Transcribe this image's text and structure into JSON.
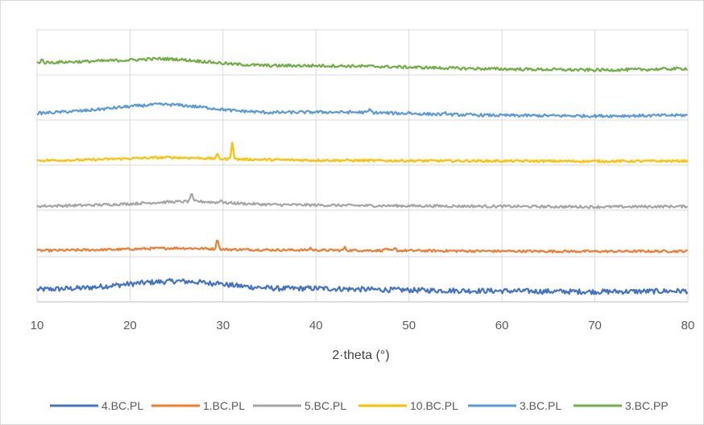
{
  "chart_data": {
    "type": "line",
    "title": "",
    "xlabel": "2·theta (°)",
    "ylabel": "",
    "xlim": [
      10,
      80
    ],
    "x_ticks": [
      "10",
      "20",
      "30",
      "40",
      "50",
      "60",
      "70",
      "80"
    ],
    "y_ticks_labeled": false,
    "grid": true,
    "legend_position": "bottom",
    "offset_stacked": true,
    "series": [
      {
        "name": "4.BC.PL",
        "color": "#4472C4",
        "noise": 1.0,
        "points": [
          [
            10,
            1.0
          ],
          [
            15,
            1.6
          ],
          [
            20,
            3.2
          ],
          [
            22,
            3.8
          ],
          [
            25,
            4.3
          ],
          [
            27,
            4.0
          ],
          [
            30,
            3.0
          ],
          [
            33,
            2.0
          ],
          [
            36,
            1.4
          ],
          [
            40,
            1.5
          ],
          [
            45,
            1.1
          ],
          [
            50,
            0.8
          ],
          [
            55,
            0.6
          ],
          [
            60,
            0.5
          ],
          [
            65,
            0.3
          ],
          [
            70,
            0.2
          ],
          [
            75,
            0.3
          ],
          [
            80,
            0.5
          ]
        ],
        "spikes": [
          [
            29.4,
            2.0
          ]
        ]
      },
      {
        "name": "1.BC.PL",
        "color": "#ED7D31",
        "noise": 0.45,
        "points": [
          [
            10,
            0.5
          ],
          [
            18,
            0.9
          ],
          [
            22,
            1.3
          ],
          [
            25,
            1.5
          ],
          [
            28,
            1.3
          ],
          [
            30,
            1.0
          ],
          [
            35,
            0.8
          ],
          [
            40,
            0.7
          ],
          [
            45,
            0.6
          ],
          [
            50,
            0.5
          ],
          [
            60,
            0.3
          ],
          [
            70,
            0.2
          ],
          [
            80,
            0.3
          ]
        ],
        "spikes": [
          [
            29.4,
            4.4
          ],
          [
            39.4,
            0.9
          ],
          [
            43.1,
            1.1
          ],
          [
            47.5,
            1.0
          ],
          [
            48.5,
            0.8
          ]
        ]
      },
      {
        "name": "5.BC.PL",
        "color": "#A5A5A5",
        "noise": 0.5,
        "points": [
          [
            10,
            0.6
          ],
          [
            15,
            0.9
          ],
          [
            20,
            1.5
          ],
          [
            24,
            2.2
          ],
          [
            27,
            2.5
          ],
          [
            30,
            1.9
          ],
          [
            35,
            1.2
          ],
          [
            40,
            1.0
          ],
          [
            45,
            0.8
          ],
          [
            50,
            0.7
          ],
          [
            60,
            0.5
          ],
          [
            70,
            0.3
          ],
          [
            80,
            0.5
          ]
        ],
        "spikes": [
          [
            26.6,
            3.5
          ],
          [
            29.8,
            1.4
          ]
        ]
      },
      {
        "name": "10.BC.PL",
        "color": "#FFC000",
        "noise": 0.45,
        "points": [
          [
            10,
            0.5
          ],
          [
            15,
            0.7
          ],
          [
            20,
            1.3
          ],
          [
            24,
            1.7
          ],
          [
            27,
            1.5
          ],
          [
            30,
            1.1
          ],
          [
            35,
            0.8
          ],
          [
            40,
            0.6
          ],
          [
            50,
            0.4
          ],
          [
            60,
            0.3
          ],
          [
            70,
            0.2
          ],
          [
            80,
            0.3
          ]
        ],
        "spikes": [
          [
            29.4,
            1.8
          ],
          [
            31.0,
            6.8
          ]
        ]
      },
      {
        "name": "3.BC.PL",
        "color": "#5B9BD5",
        "noise": 0.55,
        "points": [
          [
            10,
            1.3
          ],
          [
            15,
            2.3
          ],
          [
            20,
            4.0
          ],
          [
            23,
            4.8
          ],
          [
            25,
            4.6
          ],
          [
            28,
            3.6
          ],
          [
            31,
            2.4
          ],
          [
            35,
            1.6
          ],
          [
            40,
            1.8
          ],
          [
            45,
            1.7
          ],
          [
            50,
            1.2
          ],
          [
            55,
            0.8
          ],
          [
            60,
            0.5
          ],
          [
            65,
            0.4
          ],
          [
            70,
            0.3
          ],
          [
            75,
            0.4
          ],
          [
            80,
            0.6
          ]
        ],
        "spikes": [
          [
            45.8,
            1.4
          ],
          [
            50.0,
            0.7
          ],
          [
            54.0,
            0.6
          ]
        ]
      },
      {
        "name": "3.BC.PP",
        "color": "#70AD47",
        "noise": 0.55,
        "points": [
          [
            10,
            3.1
          ],
          [
            15,
            3.6
          ],
          [
            20,
            4.2
          ],
          [
            23,
            4.7
          ],
          [
            25,
            4.5
          ],
          [
            28,
            3.6
          ],
          [
            31,
            2.6
          ],
          [
            35,
            2.0
          ],
          [
            40,
            2.0
          ],
          [
            45,
            1.8
          ],
          [
            50,
            1.4
          ],
          [
            55,
            1.0
          ],
          [
            60,
            0.7
          ],
          [
            65,
            0.5
          ],
          [
            70,
            0.3
          ],
          [
            75,
            0.5
          ],
          [
            80,
            0.9
          ]
        ],
        "spikes": [
          [
            10.5,
            1.5
          ]
        ]
      }
    ]
  }
}
